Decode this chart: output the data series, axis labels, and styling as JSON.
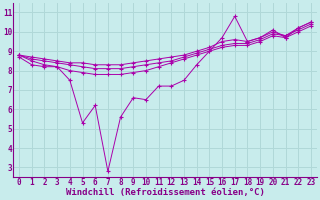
{
  "xlabel": "Windchill (Refroidissement éolien,°C)",
  "xlim": [
    -0.5,
    23.5
  ],
  "ylim": [
    2.5,
    11.5
  ],
  "xticks": [
    0,
    1,
    2,
    3,
    4,
    5,
    6,
    7,
    8,
    9,
    10,
    11,
    12,
    13,
    14,
    15,
    16,
    17,
    18,
    19,
    20,
    21,
    22,
    23
  ],
  "yticks": [
    3,
    4,
    5,
    6,
    7,
    8,
    9,
    10,
    11
  ],
  "bg_color": "#c8ecec",
  "grid_color": "#b0d8d8",
  "line_color": "#aa00aa",
  "lines": [
    {
      "x": [
        0,
        1,
        2,
        3,
        4,
        5,
        6,
        7,
        8,
        9,
        10,
        11,
        12,
        13,
        14,
        15,
        16,
        17,
        18,
        19,
        20,
        21,
        22,
        23
      ],
      "y": [
        8.7,
        8.3,
        8.2,
        8.2,
        7.5,
        5.3,
        6.2,
        2.8,
        5.6,
        6.6,
        6.5,
        7.2,
        7.2,
        7.5,
        8.3,
        9.0,
        9.7,
        10.8,
        9.5,
        9.7,
        10.1,
        9.7,
        10.2,
        10.5
      ]
    },
    {
      "x": [
        0,
        1,
        2,
        3,
        4,
        5,
        6,
        7,
        8,
        9,
        10,
        11,
        12,
        13,
        14,
        15,
        16,
        17,
        18,
        19,
        20,
        21,
        22,
        23
      ],
      "y": [
        8.8,
        8.7,
        8.6,
        8.5,
        8.4,
        8.4,
        8.3,
        8.3,
        8.3,
        8.4,
        8.5,
        8.6,
        8.7,
        8.8,
        9.0,
        9.2,
        9.5,
        9.6,
        9.5,
        9.7,
        10.0,
        9.8,
        10.2,
        10.5
      ]
    },
    {
      "x": [
        0,
        1,
        2,
        3,
        4,
        5,
        6,
        7,
        8,
        9,
        10,
        11,
        12,
        13,
        14,
        15,
        16,
        17,
        18,
        19,
        20,
        21,
        22,
        23
      ],
      "y": [
        8.8,
        8.6,
        8.5,
        8.4,
        8.3,
        8.2,
        8.1,
        8.1,
        8.1,
        8.2,
        8.3,
        8.4,
        8.5,
        8.7,
        8.9,
        9.1,
        9.3,
        9.4,
        9.4,
        9.6,
        9.9,
        9.8,
        10.1,
        10.4
      ]
    },
    {
      "x": [
        0,
        1,
        2,
        3,
        4,
        5,
        6,
        7,
        8,
        9,
        10,
        11,
        12,
        13,
        14,
        15,
        16,
        17,
        18,
        19,
        20,
        21,
        22,
        23
      ],
      "y": [
        8.8,
        8.5,
        8.3,
        8.2,
        8.0,
        7.9,
        7.8,
        7.8,
        7.8,
        7.9,
        8.0,
        8.2,
        8.4,
        8.6,
        8.8,
        9.0,
        9.2,
        9.3,
        9.3,
        9.5,
        9.8,
        9.7,
        10.0,
        10.3
      ]
    }
  ],
  "font_family": "monospace",
  "tick_fontsize": 5.5,
  "label_fontsize": 6.5
}
